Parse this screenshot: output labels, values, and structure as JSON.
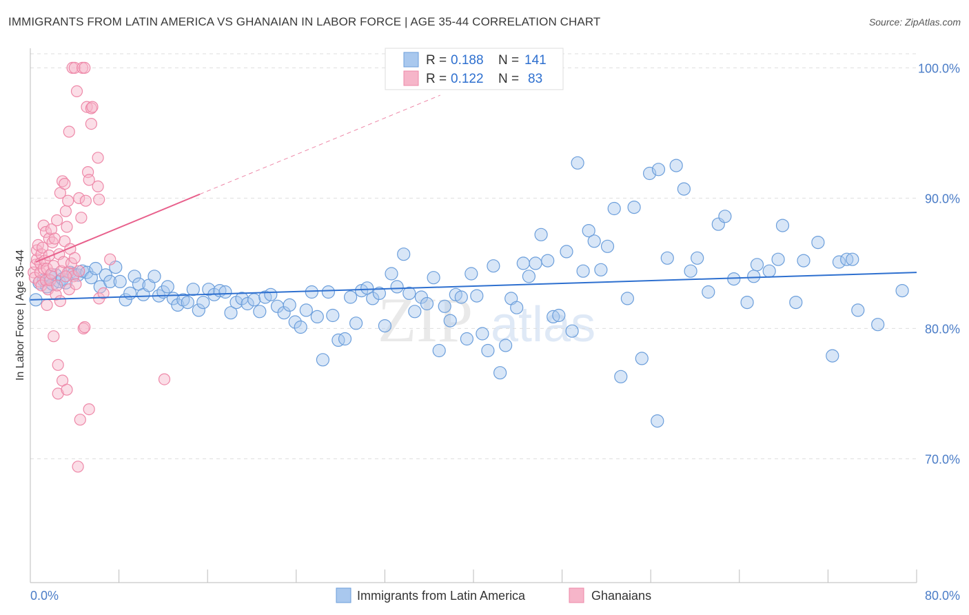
{
  "header": {
    "title": "IMMIGRANTS FROM LATIN AMERICA VS GHANAIAN IN LABOR FORCE | AGE 35-44 CORRELATION CHART",
    "source": "Source: ZipAtlas.com"
  },
  "watermark": {
    "zip": "ZIP",
    "atlas": "atlas"
  },
  "colors": {
    "blue_fill": "#a9c8ee",
    "blue_stroke": "#6b9edb",
    "blue_line": "#2d6fcf",
    "pink_fill": "#f6b5c9",
    "pink_stroke": "#ee88a8",
    "pink_line": "#e8608c",
    "grid": "#dddddd",
    "axis_text": "#4a7cc7"
  },
  "legend": {
    "rows": [
      {
        "r_label": "R = ",
        "r_value": "0.188",
        "n_label": "N = ",
        "n_value": "141"
      },
      {
        "r_label": "R = ",
        "r_value": "0.122",
        "n_label": "N = ",
        "n_value": "83"
      }
    ]
  },
  "bottom_legend": {
    "items": [
      {
        "label": "Immigrants from Latin America"
      },
      {
        "label": "Ghanaians"
      }
    ]
  },
  "chart_data": {
    "type": "scatter",
    "title": "IMMIGRANTS FROM LATIN AMERICA VS GHANAIAN IN LABOR FORCE | AGE 35-44 CORRELATION CHART",
    "xlabel": "",
    "ylabel": "In Labor Force | Age 35-44",
    "xlim": [
      0,
      80
    ],
    "ylim": [
      60.5,
      101.5
    ],
    "x_tick_labels": [
      "0.0%",
      "80.0%"
    ],
    "y_ticks": [
      70,
      80,
      90,
      100
    ],
    "y_tick_labels": [
      "70.0%",
      "80.0%",
      "90.0%",
      "100.0%"
    ],
    "grid": true,
    "legend_position": "top-center",
    "series": [
      {
        "name": "Immigrants from Latin America",
        "color": "#6b9edb",
        "r": 0.188,
        "n": 141,
        "trend": {
          "x": [
            0,
            80
          ],
          "y": [
            82.2,
            84.3
          ]
        },
        "points": [
          [
            0.5,
            82.2
          ],
          [
            0.8,
            83.5
          ],
          [
            1.2,
            83.7
          ],
          [
            1.5,
            83.2
          ],
          [
            1.8,
            84.0
          ],
          [
            2.0,
            83.4
          ],
          [
            2.3,
            84.1
          ],
          [
            2.6,
            83.6
          ],
          [
            2.9,
            83.8
          ],
          [
            3.2,
            83.5
          ],
          [
            3.6,
            84.3
          ],
          [
            3.9,
            84.2
          ],
          [
            4.3,
            84.1
          ],
          [
            4.7,
            84.4
          ],
          [
            5.1,
            84.3
          ],
          [
            5.5,
            83.9
          ],
          [
            5.9,
            84.6
          ],
          [
            6.3,
            83.2
          ],
          [
            6.8,
            84.1
          ],
          [
            7.2,
            83.6
          ],
          [
            7.7,
            84.7
          ],
          [
            8.1,
            83.6
          ],
          [
            8.6,
            82.2
          ],
          [
            9.0,
            82.7
          ],
          [
            9.4,
            84.0
          ],
          [
            9.8,
            83.4
          ],
          [
            10.2,
            82.6
          ],
          [
            10.7,
            83.3
          ],
          [
            11.2,
            84.0
          ],
          [
            11.6,
            82.5
          ],
          [
            12.0,
            82.8
          ],
          [
            12.4,
            83.2
          ],
          [
            12.9,
            82.3
          ],
          [
            13.3,
            81.8
          ],
          [
            13.8,
            82.2
          ],
          [
            14.2,
            82.0
          ],
          [
            14.7,
            83.0
          ],
          [
            15.2,
            81.4
          ],
          [
            15.6,
            82.0
          ],
          [
            16.1,
            83.0
          ],
          [
            16.6,
            82.6
          ],
          [
            17.1,
            82.9
          ],
          [
            17.6,
            82.8
          ],
          [
            18.1,
            81.2
          ],
          [
            18.6,
            82.0
          ],
          [
            19.1,
            82.3
          ],
          [
            19.6,
            81.9
          ],
          [
            20.2,
            82.2
          ],
          [
            20.7,
            81.3
          ],
          [
            21.2,
            82.4
          ],
          [
            21.7,
            82.6
          ],
          [
            22.3,
            81.7
          ],
          [
            22.9,
            81.2
          ],
          [
            23.4,
            81.8
          ],
          [
            23.9,
            80.5
          ],
          [
            24.4,
            80.1
          ],
          [
            24.9,
            81.4
          ],
          [
            25.4,
            82.8
          ],
          [
            25.9,
            80.9
          ],
          [
            26.4,
            77.6
          ],
          [
            26.9,
            82.8
          ],
          [
            27.3,
            81.0
          ],
          [
            27.8,
            79.1
          ],
          [
            28.4,
            79.2
          ],
          [
            28.9,
            82.4
          ],
          [
            29.4,
            80.4
          ],
          [
            29.9,
            82.9
          ],
          [
            30.4,
            83.1
          ],
          [
            30.9,
            82.3
          ],
          [
            31.5,
            82.7
          ],
          [
            32.0,
            80.2
          ],
          [
            32.6,
            84.2
          ],
          [
            33.1,
            83.2
          ],
          [
            33.7,
            85.7
          ],
          [
            34.2,
            82.7
          ],
          [
            34.7,
            81.3
          ],
          [
            35.3,
            82.4
          ],
          [
            35.8,
            81.9
          ],
          [
            36.4,
            83.9
          ],
          [
            36.9,
            78.3
          ],
          [
            37.4,
            81.7
          ],
          [
            37.9,
            80.6
          ],
          [
            38.4,
            82.6
          ],
          [
            38.9,
            82.4
          ],
          [
            39.4,
            79.2
          ],
          [
            39.8,
            84.2
          ],
          [
            40.3,
            82.5
          ],
          [
            40.8,
            79.6
          ],
          [
            41.3,
            78.3
          ],
          [
            41.8,
            84.8
          ],
          [
            42.4,
            76.6
          ],
          [
            42.9,
            78.7
          ],
          [
            43.4,
            82.3
          ],
          [
            43.9,
            81.6
          ],
          [
            44.5,
            85.0
          ],
          [
            45.0,
            84.0
          ],
          [
            45.6,
            85.0
          ],
          [
            46.1,
            87.2
          ],
          [
            46.7,
            85.2
          ],
          [
            47.2,
            80.9
          ],
          [
            47.7,
            81.0
          ],
          [
            48.4,
            85.9
          ],
          [
            48.9,
            79.8
          ],
          [
            49.4,
            92.7
          ],
          [
            49.9,
            84.4
          ],
          [
            50.4,
            87.5
          ],
          [
            50.9,
            86.7
          ],
          [
            51.5,
            84.5
          ],
          [
            52.1,
            86.3
          ],
          [
            52.7,
            89.2
          ],
          [
            53.3,
            76.3
          ],
          [
            53.9,
            82.3
          ],
          [
            54.5,
            89.3
          ],
          [
            55.2,
            77.7
          ],
          [
            55.9,
            91.9
          ],
          [
            56.6,
            72.9
          ],
          [
            56.7,
            92.2
          ],
          [
            57.5,
            85.4
          ],
          [
            58.3,
            92.5
          ],
          [
            59.0,
            90.7
          ],
          [
            59.6,
            84.4
          ],
          [
            60.2,
            85.4
          ],
          [
            61.2,
            82.8
          ],
          [
            62.1,
            88.0
          ],
          [
            62.7,
            88.6
          ],
          [
            63.5,
            83.8
          ],
          [
            64.7,
            82.0
          ],
          [
            65.3,
            84.0
          ],
          [
            65.6,
            84.9
          ],
          [
            66.7,
            84.4
          ],
          [
            67.5,
            85.3
          ],
          [
            67.9,
            87.9
          ],
          [
            69.1,
            82.0
          ],
          [
            69.8,
            85.2
          ],
          [
            71.1,
            86.6
          ],
          [
            72.4,
            77.9
          ],
          [
            73.0,
            85.1
          ],
          [
            73.7,
            85.3
          ],
          [
            74.2,
            85.3
          ],
          [
            74.7,
            81.4
          ],
          [
            76.5,
            80.3
          ],
          [
            78.7,
            82.9
          ]
        ]
      },
      {
        "name": "Ghanaians",
        "color": "#ee88a8",
        "r": 0.122,
        "n": 83,
        "trend": {
          "x": [
            0.5,
            15.3
          ],
          "y": [
            85.1,
            90.3
          ]
        },
        "trend_extension": {
          "x": [
            15.3,
            37.0
          ],
          "y": [
            90.3,
            97.9
          ]
        },
        "points": [
          [
            0.3,
            84.3
          ],
          [
            0.4,
            83.9
          ],
          [
            0.5,
            84.9
          ],
          [
            0.6,
            85.3
          ],
          [
            0.6,
            86.0
          ],
          [
            0.7,
            86.4
          ],
          [
            0.8,
            83.6
          ],
          [
            0.9,
            84.3
          ],
          [
            0.9,
            85.0
          ],
          [
            1.0,
            85.7
          ],
          [
            1.0,
            83.3
          ],
          [
            1.1,
            86.2
          ],
          [
            1.2,
            84.6
          ],
          [
            1.2,
            87.9
          ],
          [
            1.3,
            85.2
          ],
          [
            1.4,
            83.7
          ],
          [
            1.4,
            87.4
          ],
          [
            1.5,
            81.8
          ],
          [
            1.5,
            84.6
          ],
          [
            1.6,
            83.0
          ],
          [
            1.7,
            86.9
          ],
          [
            1.7,
            85.6
          ],
          [
            1.8,
            83.7
          ],
          [
            1.9,
            87.6
          ],
          [
            1.9,
            84.2
          ],
          [
            2.0,
            86.6
          ],
          [
            2.1,
            84.8
          ],
          [
            2.1,
            79.4
          ],
          [
            2.2,
            86.9
          ],
          [
            2.3,
            82.6
          ],
          [
            2.4,
            88.3
          ],
          [
            2.4,
            83.3
          ],
          [
            2.5,
            75.0
          ],
          [
            2.5,
            77.2
          ],
          [
            2.6,
            85.7
          ],
          [
            2.7,
            90.4
          ],
          [
            2.7,
            82.1
          ],
          [
            2.8,
            84.4
          ],
          [
            2.9,
            76.0
          ],
          [
            2.9,
            91.3
          ],
          [
            3.0,
            85.1
          ],
          [
            3.1,
            91.1
          ],
          [
            3.1,
            86.7
          ],
          [
            3.2,
            89.0
          ],
          [
            3.3,
            75.3
          ],
          [
            3.3,
            87.8
          ],
          [
            3.4,
            84.3
          ],
          [
            3.4,
            89.8
          ],
          [
            3.5,
            95.1
          ],
          [
            3.5,
            83.0
          ],
          [
            3.6,
            86.1
          ],
          [
            3.7,
            85.0
          ],
          [
            3.8,
            100.0
          ],
          [
            3.9,
            84.0
          ],
          [
            4.0,
            100.0
          ],
          [
            4.0,
            85.4
          ],
          [
            4.1,
            83.4
          ],
          [
            4.2,
            98.2
          ],
          [
            4.3,
            69.4
          ],
          [
            4.4,
            84.4
          ],
          [
            4.4,
            90.0
          ],
          [
            4.5,
            73.0
          ],
          [
            4.6,
            88.5
          ],
          [
            4.7,
            100.0
          ],
          [
            4.8,
            80.0
          ],
          [
            4.9,
            100.0
          ],
          [
            4.9,
            80.1
          ],
          [
            5.0,
            89.8
          ],
          [
            5.1,
            97.0
          ],
          [
            5.2,
            92.0
          ],
          [
            5.3,
            91.4
          ],
          [
            5.3,
            73.8
          ],
          [
            5.5,
            96.9
          ],
          [
            5.5,
            95.7
          ],
          [
            5.6,
            97.0
          ],
          [
            6.1,
            93.1
          ],
          [
            6.1,
            90.9
          ],
          [
            6.2,
            89.9
          ],
          [
            6.2,
            82.3
          ],
          [
            6.6,
            82.7
          ],
          [
            7.2,
            85.3
          ],
          [
            12.1,
            76.1
          ],
          [
            3.2,
            84.0
          ]
        ]
      }
    ]
  }
}
